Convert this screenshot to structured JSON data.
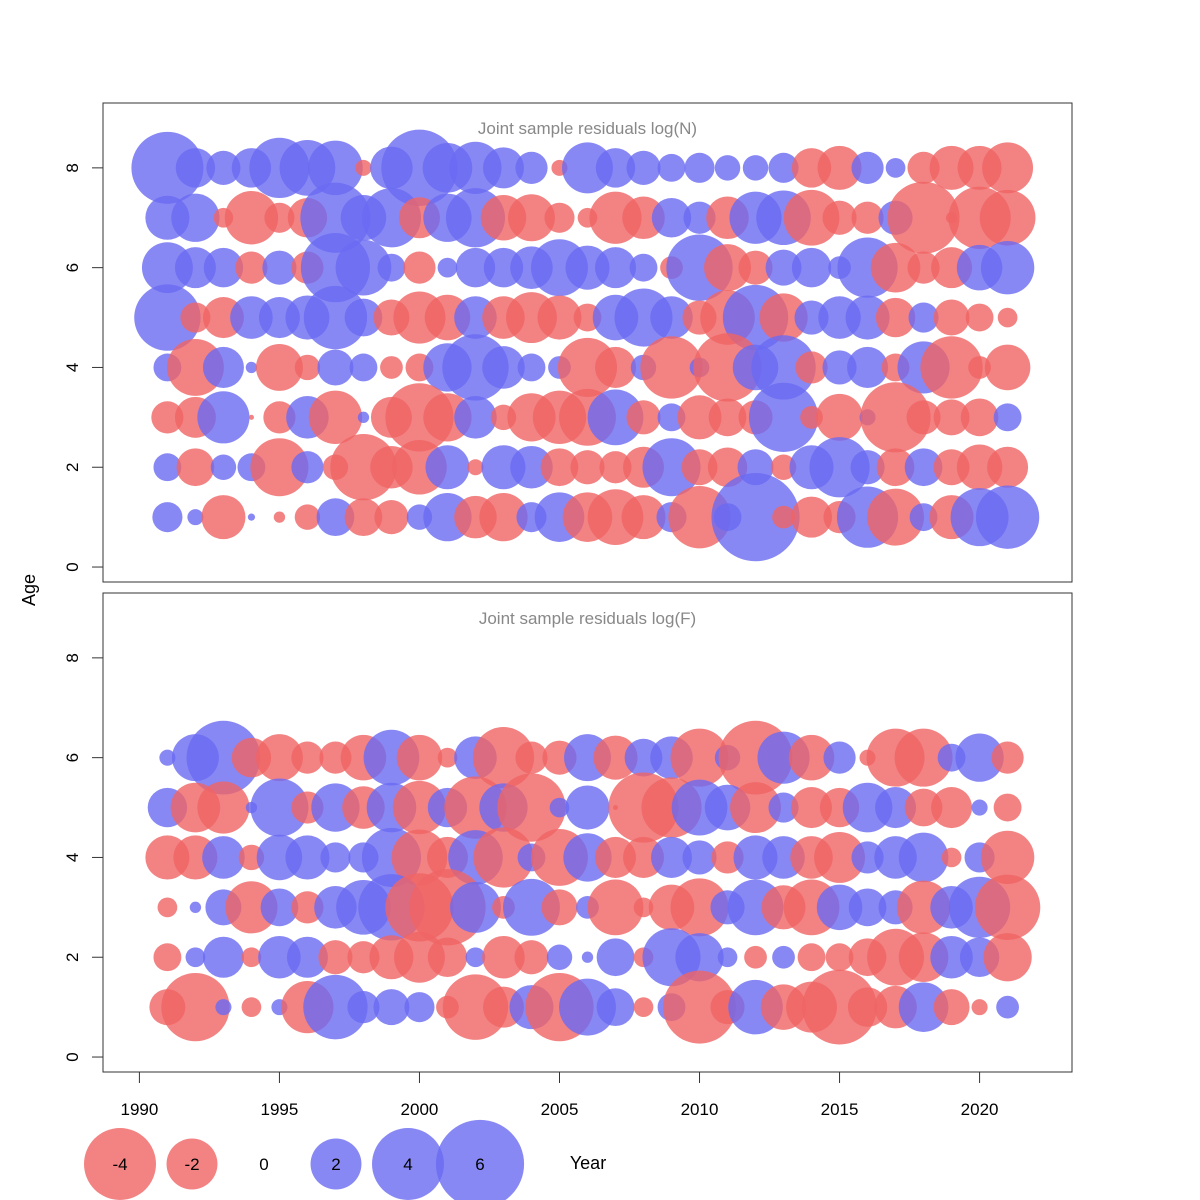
{
  "chart_data": {
    "type": "bubble",
    "ylabel": "Age",
    "xlabel": "Year",
    "years": [
      1991,
      1992,
      1993,
      1994,
      1995,
      1996,
      1997,
      1998,
      1999,
      2000,
      2001,
      2002,
      2003,
      2004,
      2005,
      2006,
      2007,
      2008,
      2009,
      2010,
      2011,
      2012,
      2013,
      2014,
      2015,
      2016,
      2017,
      2018,
      2019,
      2020,
      2021
    ],
    "xlim": [
      1988.7,
      2023.3
    ],
    "x_ticks": [
      "1990",
      "1995",
      "2000",
      "2005",
      "2010",
      "2015",
      "2020"
    ],
    "x_tick_values": [
      1990,
      1995,
      2000,
      2005,
      2010,
      2015,
      2020
    ],
    "y_ticks": [
      "0",
      "2",
      "4",
      "6",
      "8"
    ],
    "y_tick_values": [
      0,
      2,
      4,
      6,
      8
    ],
    "ylim": [
      -0.3,
      9.3
    ],
    "colors": {
      "positive": "#6a6af2",
      "negative": "#f06464"
    },
    "panels": [
      {
        "title": "Joint sample residuals log(N)",
        "ages": [
          8,
          7,
          6,
          5,
          4,
          3,
          2,
          1
        ],
        "residuals": [
          [
            4.0,
            1.2,
            0.9,
            1.2,
            2.8,
            2.4,
            2.3,
            -0.2,
            1.4,
            4.5,
            1.9,
            2.1,
            1.3,
            0.8,
            -0.2,
            2.0,
            1.2,
            0.9,
            0.6,
            0.7,
            0.5,
            0.5,
            0.7,
            -1.2,
            -1.5,
            0.8,
            0.3,
            -0.8,
            -1.5,
            -1.5,
            -2.0
          ],
          [
            1.5,
            1.8,
            -0.3,
            -2.2,
            -0.7,
            -1.2,
            3.8,
            1.6,
            2.7,
            -1.3,
            1.8,
            2.7,
            -1.6,
            -1.7,
            -0.7,
            -0.3,
            -2.1,
            -1.4,
            1.2,
            0.8,
            -1.4,
            2.1,
            2.3,
            -2.4,
            -0.9,
            -0.8,
            0.9,
            -4.0,
            -0.1,
            -3.0,
            -2.4
          ],
          [
            2.0,
            1.3,
            1.2,
            -0.8,
            0.9,
            -0.8,
            3.7,
            2.4,
            0.6,
            -0.8,
            0.3,
            1.2,
            1.2,
            1.4,
            2.5,
            1.5,
            1.3,
            0.6,
            -0.4,
            3.4,
            -1.7,
            -0.9,
            1.0,
            1.2,
            0.4,
            2.8,
            -1.9,
            -0.8,
            -1.3,
            1.6,
            2.2
          ],
          [
            3.4,
            -0.7,
            -1.3,
            1.4,
            1.3,
            1.5,
            3.1,
            1.1,
            -1.0,
            -2.1,
            -1.6,
            1.4,
            -1.4,
            -2.0,
            -1.5,
            -0.6,
            1.6,
            2.6,
            1.4,
            -0.9,
            -2.3,
            3.3,
            -1.8,
            0.9,
            1.4,
            1.5,
            -1.2,
            0.7,
            -1.0,
            -0.6,
            -0.3
          ],
          [
            0.6,
            -2.5,
            1.3,
            0.1,
            -1.7,
            -0.5,
            1.0,
            0.6,
            -0.4,
            -0.6,
            1.8,
            3.4,
            1.4,
            0.6,
            0.4,
            -2.7,
            -1.3,
            0.5,
            -3.0,
            0.3,
            -3.6,
            1.6,
            3.2,
            -0.8,
            0.9,
            1.3,
            -0.6,
            2.1,
            -3.0,
            -0.4,
            -1.6
          ],
          [
            -0.8,
            -1.3,
            2.1,
            -0.02,
            -0.8,
            1.4,
            -2.2,
            0.1,
            -1.3,
            -3.6,
            -1.8,
            1.4,
            -0.5,
            -1.8,
            -2.2,
            -2.5,
            2.4,
            -0.9,
            0.6,
            -1.5,
            -1.1,
            -0.9,
            3.7,
            -0.4,
            -1.7,
            0.2,
            -3.8,
            -0.9,
            -1.0,
            -1.1,
            0.6
          ],
          [
            0.6,
            -1.1,
            0.5,
            0.6,
            -2.6,
            0.8,
            -0.5,
            -3.4,
            -1.4,
            -2.3,
            1.5,
            -0.2,
            1.5,
            1.4,
            -1.1,
            -0.9,
            -0.8,
            -1.3,
            2.6,
            -1.0,
            -1.2,
            1.0,
            -0.5,
            1.5,
            2.8,
            0.9,
            -1.1,
            1.1,
            -1.0,
            -1.6,
            -1.3
          ],
          [
            0.7,
            0.2,
            -1.5,
            0.04,
            -0.1,
            -0.5,
            1.1,
            -1.1,
            -0.9,
            0.5,
            1.8,
            -1.4,
            -1.8,
            0.7,
            1.9,
            -1.9,
            -2.4,
            -1.5,
            0.7,
            -3.0,
            0.6,
            6.0,
            -0.4,
            -1.3,
            -0.8,
            2.9,
            -2.5,
            0.6,
            -1.5,
            2.6,
            3.1
          ]
        ]
      },
      {
        "title": "Joint sample residuals log(F)",
        "ages": [
          6,
          5,
          4,
          3,
          2,
          1
        ],
        "residuals": [
          [
            0.2,
            1.7,
            4.2,
            -1.2,
            -1.7,
            -0.8,
            -0.8,
            -1.6,
            2.4,
            -1.6,
            -0.3,
            1.4,
            -2.9,
            -0.8,
            -0.9,
            1.7,
            -1.5,
            1.1,
            1.4,
            -2.6,
            0.5,
            -4.2,
            2.1,
            -1.6,
            0.8,
            -0.2,
            -2.6,
            -2.6,
            0.6,
            1.8,
            -0.8
          ],
          [
            1.2,
            -1.9,
            -2.1,
            0.1,
            2.6,
            -0.8,
            1.8,
            -1.4,
            1.9,
            -2.2,
            1.2,
            -3.0,
            1.8,
            -3.6,
            0.3,
            1.5,
            -0.02,
            -3.8,
            -2.8,
            2.4,
            1.6,
            -2.0,
            0.7,
            -1.3,
            -1.2,
            1.9,
            1.3,
            -1.1,
            -1.3,
            0.2,
            -0.6
          ],
          [
            -1.5,
            -1.5,
            1.4,
            -0.5,
            1.6,
            1.5,
            0.7,
            0.7,
            2.7,
            -2.4,
            -1.3,
            2.3,
            -2.8,
            0.6,
            -2.5,
            1.8,
            -1.3,
            -1.3,
            1.3,
            0.9,
            -0.8,
            1.5,
            1.4,
            -1.4,
            -2.0,
            0.8,
            1.4,
            1.9,
            -0.3,
            0.7,
            -2.2
          ],
          [
            -0.3,
            0.1,
            1.0,
            -2.1,
            1.1,
            -0.8,
            1.4,
            2.3,
            3.4,
            -3.6,
            -4.5,
            2.0,
            -0.4,
            2.5,
            -1.0,
            0.4,
            -2.4,
            -0.3,
            -1.6,
            -2.6,
            0.9,
            2.4,
            -1.5,
            -2.4,
            1.6,
            1.1,
            0.9,
            -2.2,
            1.4,
            2.9,
            -3.3
          ],
          [
            -0.6,
            0.3,
            1.3,
            -0.3,
            1.4,
            1.3,
            -0.9,
            -0.8,
            -1.5,
            -2.0,
            -1.2,
            0.3,
            -1.4,
            -0.9,
            0.5,
            0.1,
            1.1,
            -0.3,
            2.6,
            1.8,
            0.3,
            -0.4,
            0.4,
            -0.6,
            -0.6,
            -1.1,
            -2.5,
            -1.9,
            1.4,
            1.2,
            -1.8
          ],
          [
            -1.0,
            -3.6,
            0.2,
            -0.3,
            0.2,
            -2.1,
            3.2,
            0.8,
            1.0,
            0.7,
            -0.4,
            -3.3,
            -1.3,
            1.5,
            -3.6,
            2.5,
            1.1,
            -0.3,
            0.6,
            -4.1,
            -0.9,
            2.3,
            -1.6,
            -2.0,
            -4.3,
            -1.2,
            -1.4,
            1.9,
            -1.0,
            -0.2,
            0.4
          ]
        ]
      }
    ],
    "legend": {
      "labels": [
        "-4",
        "-2",
        "0",
        "2",
        "4",
        "6"
      ],
      "values": [
        -4,
        -2,
        0,
        2,
        4,
        6
      ]
    }
  }
}
